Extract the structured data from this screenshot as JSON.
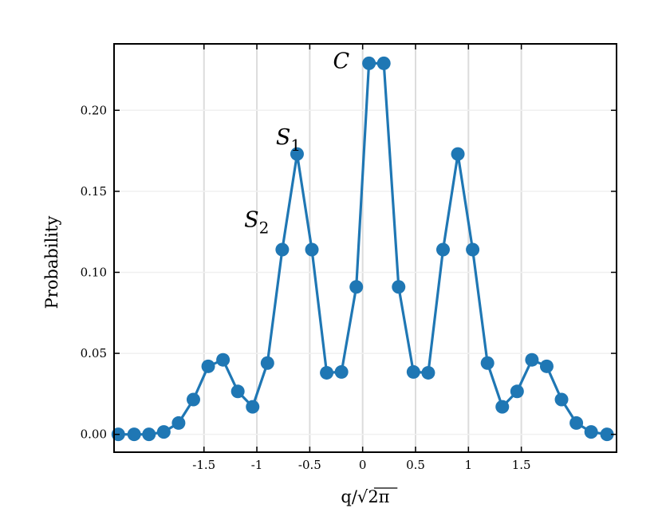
{
  "chart_data": {
    "type": "line",
    "title": "",
    "xlabel": "q/√2π",
    "ylabel": "Probability",
    "xlim": [
      -2.35,
      2.4
    ],
    "ylim": [
      -0.011,
      0.241
    ],
    "grid": true,
    "grid_axis": "x",
    "x_ticks": [
      -1.5,
      -1,
      -0.5,
      0,
      0.5,
      1,
      1.5
    ],
    "x_tick_labels": [
      "-1.5",
      "-1",
      "-0.5",
      "0",
      "0.5",
      "1",
      "1.5"
    ],
    "y_ticks": [
      0.0,
      0.05,
      0.1,
      0.15,
      0.2
    ],
    "y_tick_labels": [
      "0.00",
      "0.05",
      "0.10",
      "0.15",
      "0.20"
    ],
    "colors": {
      "series": "#1f77b4",
      "grid": "#dcdcdc",
      "axis": "#000000"
    },
    "series": [
      {
        "x": [
          -2.31,
          -2.16,
          -2.02,
          -1.88,
          -1.74,
          -1.6,
          -1.46,
          -1.32,
          -1.18,
          -1.04,
          -0.9,
          -0.76,
          -0.62,
          -0.48,
          -0.34,
          -0.2,
          -0.06,
          0.06,
          0.2,
          0.34,
          0.48,
          0.62,
          0.76,
          0.9,
          1.04,
          1.18,
          1.32,
          1.46,
          1.6,
          1.74,
          1.88,
          2.02,
          2.16,
          2.31
        ],
        "values": [
          0.0,
          0.0,
          0.0,
          0.0015,
          0.007,
          0.0215,
          0.042,
          0.046,
          0.0265,
          0.017,
          0.044,
          0.114,
          0.173,
          0.114,
          0.038,
          0.0385,
          0.091,
          0.229,
          0.229,
          0.091,
          0.0385,
          0.038,
          0.114,
          0.173,
          0.114,
          0.044,
          0.017,
          0.0265,
          0.046,
          0.042,
          0.0215,
          0.007,
          0.0015,
          0.0
        ]
      }
    ],
    "annotations": [
      {
        "text": "C",
        "sub": "",
        "x": -0.28,
        "y": 0.226
      },
      {
        "text": "S",
        "sub": "1",
        "x": -0.82,
        "y": 0.179
      },
      {
        "text": "S",
        "sub": "2",
        "x": -1.12,
        "y": 0.128
      }
    ]
  }
}
